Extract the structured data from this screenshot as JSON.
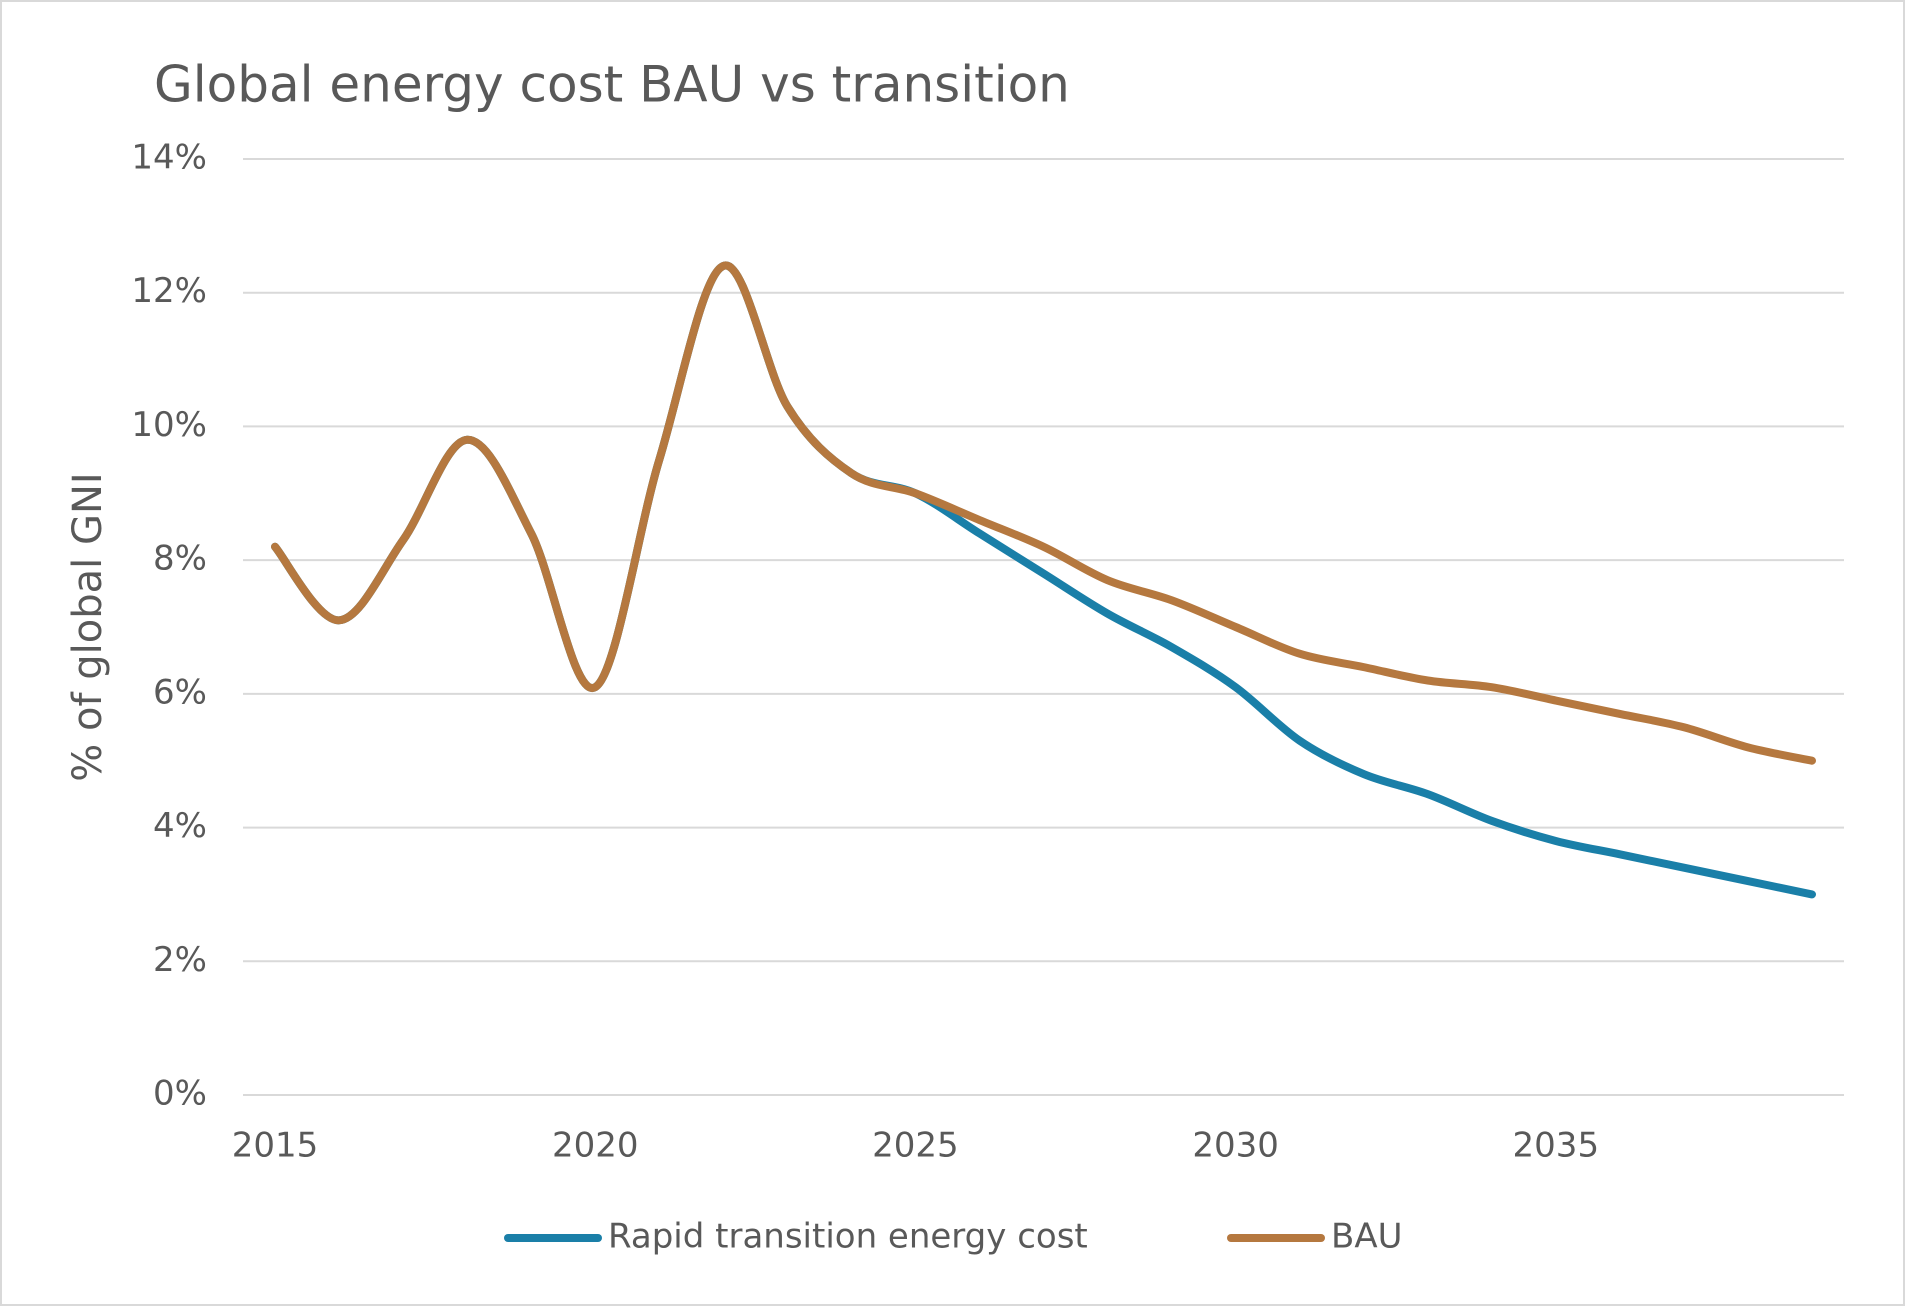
{
  "chart_data": {
    "type": "line",
    "title": "Global energy cost BAU vs transition",
    "y_label": "% of global GNI",
    "x": [
      2015,
      2016,
      2017,
      2018,
      2019,
      2020,
      2021,
      2022,
      2023,
      2024,
      2025,
      2026,
      2027,
      2028,
      2029,
      2030,
      2031,
      2032,
      2033,
      2034,
      2035,
      2036,
      2037,
      2038,
      2039
    ],
    "series": [
      {
        "name": "Rapid transition energy cost",
        "color": "#1a7fa8",
        "values": [
          8.2,
          7.1,
          8.3,
          9.8,
          8.4,
          6.1,
          9.5,
          12.4,
          10.3,
          9.3,
          9.0,
          8.4,
          7.8,
          7.2,
          6.7,
          6.1,
          5.3,
          4.8,
          4.5,
          4.1,
          3.8,
          3.6,
          3.4,
          3.2,
          3.0
        ]
      },
      {
        "name": "BAU",
        "color": "#b5783f",
        "values": [
          8.2,
          7.1,
          8.3,
          9.8,
          8.4,
          6.1,
          9.5,
          12.4,
          10.3,
          9.3,
          9.0,
          8.6,
          8.2,
          7.7,
          7.4,
          7.0,
          6.6,
          6.4,
          6.2,
          6.1,
          5.9,
          5.7,
          5.5,
          5.2,
          5.0
        ]
      }
    ],
    "xlim": [
      2014.5,
      2039.5
    ],
    "xticks": [
      2015,
      2020,
      2025,
      2030,
      2035
    ],
    "ylim": [
      0,
      14
    ],
    "yticks": [
      {
        "value": 0,
        "label": "0%"
      },
      {
        "value": 2,
        "label": "2%"
      },
      {
        "value": 4,
        "label": "4%"
      },
      {
        "value": 6,
        "label": "6%"
      },
      {
        "value": 8,
        "label": "8%"
      },
      {
        "value": 10,
        "label": "10%"
      },
      {
        "value": 12,
        "label": "12%"
      },
      {
        "value": 14,
        "label": "14%"
      }
    ],
    "grid": true,
    "smooth": true,
    "legend": "bottom"
  }
}
